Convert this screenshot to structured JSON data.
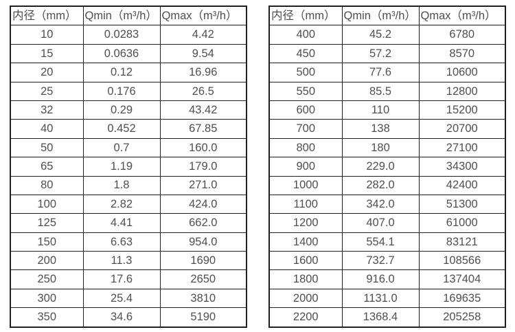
{
  "page": {
    "background": "#ffffff",
    "text_color": "#4f4f4f",
    "border_color": "#1f1f1f"
  },
  "tables": [
    {
      "name": "flow-table-small-diameter",
      "columns": [
        "内径（mm）",
        "Qmin（m³/h）",
        "Qmax（m³/h）"
      ],
      "rows": [
        [
          "10",
          "0.0283",
          "4.42"
        ],
        [
          "15",
          "0.0636",
          "9.54"
        ],
        [
          "20",
          "0.12",
          "16.96"
        ],
        [
          "25",
          "0.176",
          "26.5"
        ],
        [
          "32",
          "0.29",
          "43.42"
        ],
        [
          "40",
          "0.452",
          "67.85"
        ],
        [
          "50",
          "0.7",
          "160.0"
        ],
        [
          "65",
          "1.19",
          "179.0"
        ],
        [
          "80",
          "1.8",
          "271.0"
        ],
        [
          "100",
          "2.82",
          "424.0"
        ],
        [
          "125",
          "4.41",
          "662.0"
        ],
        [
          "150",
          "6.63",
          "954.0"
        ],
        [
          "200",
          "11.3",
          "1690"
        ],
        [
          "250",
          "17.6",
          "2650"
        ],
        [
          "300",
          "25.4",
          "3810"
        ],
        [
          "350",
          "34.6",
          "5190"
        ]
      ]
    },
    {
      "name": "flow-table-large-diameter",
      "columns": [
        "内径（mm）",
        "Qmin（m³/h）",
        "Qmax（m³/h）"
      ],
      "rows": [
        [
          "400",
          "45.2",
          "6780"
        ],
        [
          "450",
          "57.2",
          "8570"
        ],
        [
          "500",
          "77.6",
          "10600"
        ],
        [
          "550",
          "85.5",
          "12800"
        ],
        [
          "600",
          "110",
          "15200"
        ],
        [
          "700",
          "138",
          "20700"
        ],
        [
          "800",
          "180",
          "27100"
        ],
        [
          "900",
          "229.0",
          "34300"
        ],
        [
          "1000",
          "282.0",
          "42400"
        ],
        [
          "1100",
          "342.0",
          "51300"
        ],
        [
          "1200",
          "407.0",
          "61000"
        ],
        [
          "1400",
          "554.1",
          "83121"
        ],
        [
          "1600",
          "732.7",
          "108566"
        ],
        [
          "1800",
          "916.0",
          "137404"
        ],
        [
          "2000",
          "1131.0",
          "169635"
        ],
        [
          "2200",
          "1368.4",
          "205258"
        ]
      ]
    }
  ],
  "chart_data": [
    {
      "type": "table",
      "title": "",
      "columns": [
        "内径（mm）",
        "Qmin（m³/h）",
        "Qmax（m³/h）"
      ],
      "x": [
        10,
        15,
        20,
        25,
        32,
        40,
        50,
        65,
        80,
        100,
        125,
        150,
        200,
        250,
        300,
        350
      ],
      "series": [
        {
          "name": "Qmin (m³/h)",
          "values": [
            0.0283,
            0.0636,
            0.12,
            0.176,
            0.29,
            0.452,
            0.7,
            1.19,
            1.8,
            2.82,
            4.41,
            6.63,
            11.3,
            17.6,
            25.4,
            34.6
          ]
        },
        {
          "name": "Qmax (m³/h)",
          "values": [
            4.42,
            9.54,
            16.96,
            26.5,
            43.42,
            67.85,
            160.0,
            179.0,
            271.0,
            424.0,
            662.0,
            954.0,
            1690,
            2650,
            3810,
            5190
          ]
        }
      ]
    },
    {
      "type": "table",
      "title": "",
      "columns": [
        "内径（mm）",
        "Qmin（m³/h）",
        "Qmax（m³/h）"
      ],
      "x": [
        400,
        450,
        500,
        550,
        600,
        700,
        800,
        900,
        1000,
        1100,
        1200,
        1400,
        1600,
        1800,
        2000,
        2200
      ],
      "series": [
        {
          "name": "Qmin (m³/h)",
          "values": [
            45.2,
            57.2,
            77.6,
            85.5,
            110,
            138,
            180,
            229.0,
            282.0,
            342.0,
            407.0,
            554.1,
            732.7,
            916.0,
            1131.0,
            1368.4
          ]
        },
        {
          "name": "Qmax (m³/h)",
          "values": [
            6780,
            8570,
            10600,
            12800,
            15200,
            20700,
            27100,
            34300,
            42400,
            51300,
            61000,
            83121,
            108566,
            137404,
            169635,
            205258
          ]
        }
      ]
    }
  ]
}
